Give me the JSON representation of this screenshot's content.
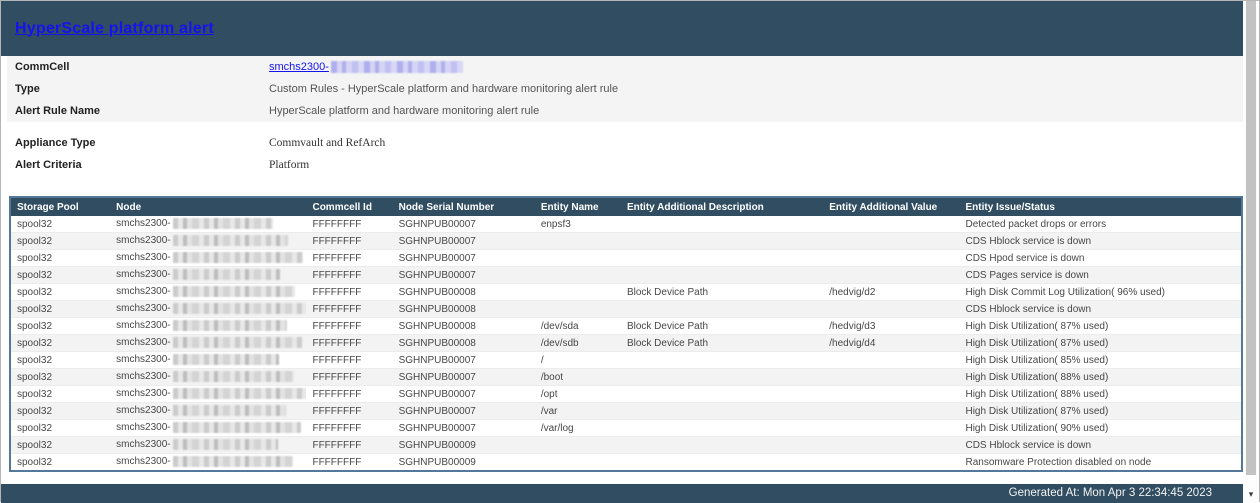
{
  "page": {
    "title": "HyperScale platform alert",
    "generated_at": "Generated At: Mon Apr 3 22:34:45 2023"
  },
  "meta": {
    "commcell": {
      "label": "CommCell",
      "value_visible": "smchs2300-"
    },
    "type": {
      "label": "Type",
      "value": "Custom Rules - HyperScale platform and hardware monitoring alert rule"
    },
    "alert_rule_name": {
      "label": "Alert Rule Name",
      "value": "HyperScale platform and hardware monitoring alert rule"
    },
    "appliance_type": {
      "label": "Appliance Type",
      "value": "Commvault and RefArch"
    },
    "alert_criteria": {
      "label": "Alert Criteria",
      "value": "Platform"
    }
  },
  "table": {
    "columns": [
      "Storage Pool",
      "Node",
      "Commcell Id",
      "Node Serial Number",
      "Entity Name",
      "Entity Additional Description",
      "Entity Additional Value",
      "Entity Issue/Status"
    ],
    "node_visible_prefix": "smchs2300-",
    "rows": [
      {
        "storage_pool": "spool32",
        "commcell_id": "FFFFFFFF",
        "node_serial_number": "SGHNPUB00007",
        "entity_name": "enpsf3",
        "entity_additional_description": "",
        "entity_additional_value": "",
        "entity_issue_status": "Detected packet drops or errors"
      },
      {
        "storage_pool": "spool32",
        "commcell_id": "FFFFFFFF",
        "node_serial_number": "SGHNPUB00007",
        "entity_name": "",
        "entity_additional_description": "",
        "entity_additional_value": "",
        "entity_issue_status": "CDS Hblock service is down"
      },
      {
        "storage_pool": "spool32",
        "commcell_id": "FFFFFFFF",
        "node_serial_number": "SGHNPUB00007",
        "entity_name": "",
        "entity_additional_description": "",
        "entity_additional_value": "",
        "entity_issue_status": "CDS Hpod service is down"
      },
      {
        "storage_pool": "spool32",
        "commcell_id": "FFFFFFFF",
        "node_serial_number": "SGHNPUB00007",
        "entity_name": "",
        "entity_additional_description": "",
        "entity_additional_value": "",
        "entity_issue_status": "CDS Pages service is down"
      },
      {
        "storage_pool": "spool32",
        "commcell_id": "FFFFFFFF",
        "node_serial_number": "SGHNPUB00008",
        "entity_name": "",
        "entity_additional_description": "Block Device Path",
        "entity_additional_value": "/hedvig/d2",
        "entity_issue_status": "High Disk Commit Log Utilization( 96% used)"
      },
      {
        "storage_pool": "spool32",
        "commcell_id": "FFFFFFFF",
        "node_serial_number": "SGHNPUB00008",
        "entity_name": "",
        "entity_additional_description": "",
        "entity_additional_value": "",
        "entity_issue_status": "CDS Hblock service is down"
      },
      {
        "storage_pool": "spool32",
        "commcell_id": "FFFFFFFF",
        "node_serial_number": "SGHNPUB00008",
        "entity_name": "/dev/sda",
        "entity_additional_description": "Block Device Path",
        "entity_additional_value": "/hedvig/d3",
        "entity_issue_status": "High Disk Utilization( 87% used)"
      },
      {
        "storage_pool": "spool32",
        "commcell_id": "FFFFFFFF",
        "node_serial_number": "SGHNPUB00008",
        "entity_name": "/dev/sdb",
        "entity_additional_description": "Block Device Path",
        "entity_additional_value": "/hedvig/d4",
        "entity_issue_status": "High Disk Utilization( 87% used)"
      },
      {
        "storage_pool": "spool32",
        "commcell_id": "FFFFFFFF",
        "node_serial_number": "SGHNPUB00007",
        "entity_name": "/",
        "entity_additional_description": "",
        "entity_additional_value": "",
        "entity_issue_status": "High Disk Utilization( 85% used)"
      },
      {
        "storage_pool": "spool32",
        "commcell_id": "FFFFFFFF",
        "node_serial_number": "SGHNPUB00007",
        "entity_name": "/boot",
        "entity_additional_description": "",
        "entity_additional_value": "",
        "entity_issue_status": "High Disk Utilization( 88% used)"
      },
      {
        "storage_pool": "spool32",
        "commcell_id": "FFFFFFFF",
        "node_serial_number": "SGHNPUB00007",
        "entity_name": "/opt",
        "entity_additional_description": "",
        "entity_additional_value": "",
        "entity_issue_status": "High Disk Utilization( 88% used)"
      },
      {
        "storage_pool": "spool32",
        "commcell_id": "FFFFFFFF",
        "node_serial_number": "SGHNPUB00007",
        "entity_name": "/var",
        "entity_additional_description": "",
        "entity_additional_value": "",
        "entity_issue_status": "High Disk Utilization( 87% used)"
      },
      {
        "storage_pool": "spool32",
        "commcell_id": "FFFFFFFF",
        "node_serial_number": "SGHNPUB00007",
        "entity_name": "/var/log",
        "entity_additional_description": "",
        "entity_additional_value": "",
        "entity_issue_status": "High Disk Utilization( 90% used)"
      },
      {
        "storage_pool": "spool32",
        "commcell_id": "FFFFFFFF",
        "node_serial_number": "SGHNPUB00009",
        "entity_name": "",
        "entity_additional_description": "",
        "entity_additional_value": "",
        "entity_issue_status": "CDS Hblock service is down"
      },
      {
        "storage_pool": "spool32",
        "commcell_id": "FFFFFFFF",
        "node_serial_number": "SGHNPUB00009",
        "entity_name": "",
        "entity_additional_description": "",
        "entity_additional_value": "",
        "entity_issue_status": "Ransomware Protection disabled on node"
      }
    ]
  },
  "colors": {
    "header_bg": "#304d62",
    "link_blue": "#1412ee",
    "row_alt": "#f3f3f3",
    "table_border": "#54789a"
  }
}
